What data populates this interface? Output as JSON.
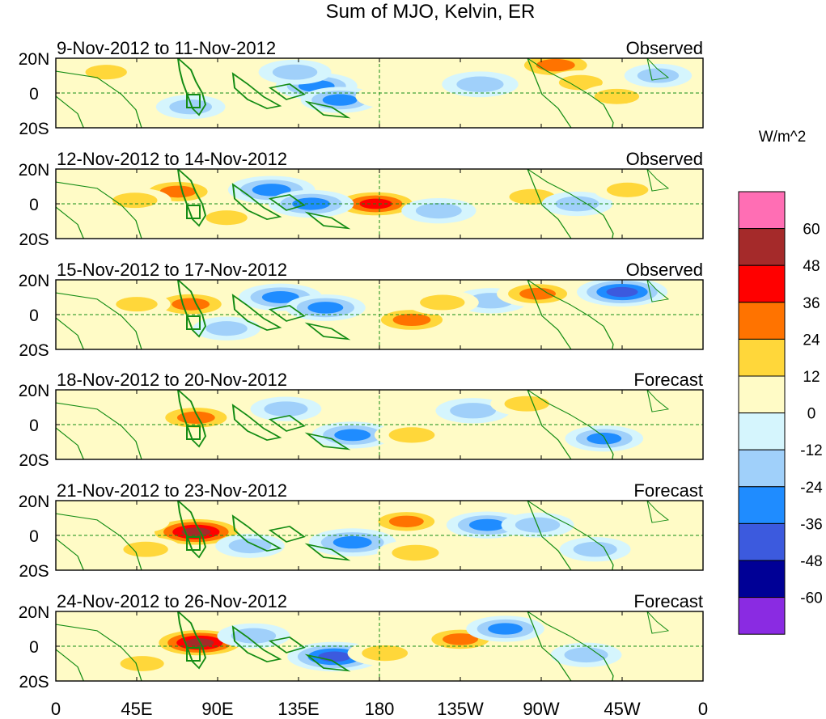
{
  "title": "Sum of MJO, Kelvin, ER",
  "colorbar": {
    "unit": "W/m^2",
    "levels": [
      "60",
      "48",
      "36",
      "24",
      "12",
      "0",
      "-12",
      "-24",
      "-36",
      "-48",
      "-60"
    ],
    "colors": [
      "#ff6eb4",
      "#a52a2a",
      "#ff0000",
      "#ff7300",
      "#ffd73a",
      "#fffbc6",
      "#d5f5fd",
      "#a0d0fa",
      "#1f8cff",
      "#3c5ade",
      "#000096",
      "#8a2be2"
    ]
  },
  "x_axis": {
    "ticks": [
      "0",
      "45E",
      "90E",
      "135E",
      "180",
      "135W",
      "90W",
      "45W",
      "0"
    ],
    "longitudes": [
      0,
      45,
      90,
      135,
      180,
      225,
      270,
      315,
      360
    ]
  },
  "y_axis": {
    "ticks": [
      "20N",
      "0",
      "20S"
    ],
    "latitudes": [
      20,
      0,
      -20
    ]
  },
  "panels": [
    {
      "dates": "9-Nov-2012 to 11-Nov-2012",
      "status": "Observed",
      "anomalies": [
        {
          "lon": 145,
          "lat": 4,
          "value": -30
        },
        {
          "lon": 133,
          "lat": 12,
          "value": -20
        },
        {
          "lon": 158,
          "lat": -4,
          "value": -26
        },
        {
          "lon": 236,
          "lat": 5,
          "value": -24
        },
        {
          "lon": 278,
          "lat": 16,
          "value": 36
        },
        {
          "lon": 292,
          "lat": 6,
          "value": 18
        },
        {
          "lon": 312,
          "lat": -2,
          "value": 20
        },
        {
          "lon": 28,
          "lat": 12,
          "value": 14
        },
        {
          "lon": 58,
          "lat": 0,
          "value": 12
        },
        {
          "lon": 185,
          "lat": -2,
          "value": 12
        },
        {
          "lon": 75,
          "lat": -8,
          "value": -16
        },
        {
          "lon": 335,
          "lat": 10,
          "value": -14
        }
      ]
    },
    {
      "dates": "12-Nov-2012 to 14-Nov-2012",
      "status": "Observed",
      "anomalies": [
        {
          "lon": 68,
          "lat": 7,
          "value": 30
        },
        {
          "lon": 178,
          "lat": 0,
          "value": 44
        },
        {
          "lon": 120,
          "lat": 8,
          "value": -36
        },
        {
          "lon": 142,
          "lat": 0,
          "value": -34
        },
        {
          "lon": 44,
          "lat": 2,
          "value": 20
        },
        {
          "lon": 213,
          "lat": -4,
          "value": -22
        },
        {
          "lon": 265,
          "lat": 4,
          "value": 22
        },
        {
          "lon": 290,
          "lat": 0,
          "value": -18
        },
        {
          "lon": 318,
          "lat": 8,
          "value": 14
        },
        {
          "lon": 95,
          "lat": -8,
          "value": 14
        }
      ]
    },
    {
      "dates": "15-Nov-2012 to 17-Nov-2012",
      "status": "Observed",
      "anomalies": [
        {
          "lon": 75,
          "lat": 6,
          "value": 34
        },
        {
          "lon": 125,
          "lat": 10,
          "value": -32
        },
        {
          "lon": 150,
          "lat": 4,
          "value": -28
        },
        {
          "lon": 198,
          "lat": -3,
          "value": 34
        },
        {
          "lon": 242,
          "lat": 8,
          "value": -22
        },
        {
          "lon": 268,
          "lat": 12,
          "value": 30
        },
        {
          "lon": 315,
          "lat": 13,
          "value": -40
        },
        {
          "lon": 215,
          "lat": 7,
          "value": 20
        },
        {
          "lon": 45,
          "lat": 6,
          "value": 14
        },
        {
          "lon": 95,
          "lat": -8,
          "value": -14
        }
      ]
    },
    {
      "dates": "18-Nov-2012 to 20-Nov-2012",
      "status": "Forecast",
      "anomalies": [
        {
          "lon": 78,
          "lat": 4,
          "value": 34
        },
        {
          "lon": 128,
          "lat": 9,
          "value": -18
        },
        {
          "lon": 165,
          "lat": -6,
          "value": -30
        },
        {
          "lon": 198,
          "lat": -6,
          "value": 22
        },
        {
          "lon": 232,
          "lat": 8,
          "value": -22
        },
        {
          "lon": 262,
          "lat": 12,
          "value": 20
        },
        {
          "lon": 305,
          "lat": -8,
          "value": -26
        },
        {
          "lon": 42,
          "lat": 4,
          "value": 12
        }
      ]
    },
    {
      "dates": "21-Nov-2012 to 23-Nov-2012",
      "status": "Forecast",
      "anomalies": [
        {
          "lon": 78,
          "lat": 2,
          "value": 52
        },
        {
          "lon": 165,
          "lat": -4,
          "value": -36
        },
        {
          "lon": 108,
          "lat": -6,
          "value": -16
        },
        {
          "lon": 195,
          "lat": 8,
          "value": 26
        },
        {
          "lon": 200,
          "lat": -10,
          "value": 24
        },
        {
          "lon": 240,
          "lat": 6,
          "value": -30
        },
        {
          "lon": 268,
          "lat": 6,
          "value": -20
        },
        {
          "lon": 50,
          "lat": -8,
          "value": 20
        },
        {
          "lon": 300,
          "lat": -8,
          "value": -18
        },
        {
          "lon": 45,
          "lat": 8,
          "value": 12
        }
      ]
    },
    {
      "dates": "24-Nov-2012 to 26-Nov-2012",
      "status": "Forecast",
      "anomalies": [
        {
          "lon": 80,
          "lat": 2,
          "value": 50
        },
        {
          "lon": 155,
          "lat": -6,
          "value": -44
        },
        {
          "lon": 110,
          "lat": 6,
          "value": -20
        },
        {
          "lon": 183,
          "lat": -4,
          "value": 22
        },
        {
          "lon": 225,
          "lat": 4,
          "value": 28
        },
        {
          "lon": 250,
          "lat": 10,
          "value": -26
        },
        {
          "lon": 48,
          "lat": -10,
          "value": 18
        },
        {
          "lon": 295,
          "lat": -5,
          "value": -18
        },
        {
          "lon": 35,
          "lat": 8,
          "value": 12
        }
      ]
    }
  ]
}
